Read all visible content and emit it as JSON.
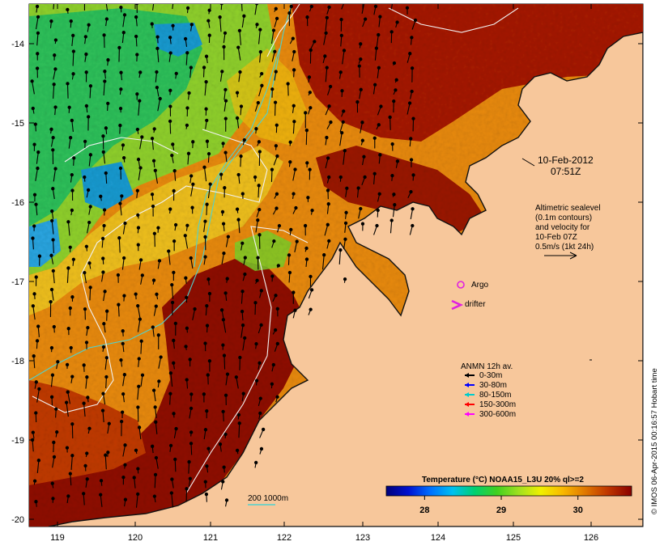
{
  "colors": {
    "land": "#f7c79b",
    "coast": "#111111",
    "contour": "#f2f2f2",
    "isobath": "#4fd2cf",
    "background": "#ffffff"
  },
  "map": {
    "lon_ticks": [
      "119",
      "120",
      "121",
      "122",
      "123",
      "124",
      "125",
      "126"
    ],
    "lat_ticks": [
      "-14",
      "-15",
      "-16",
      "-17",
      "-18",
      "-19",
      "-20"
    ],
    "timestamp": [
      "10-Feb-2012",
      "07:51Z"
    ],
    "altimetry_note": [
      "Altimetric sealevel",
      "(0.1m contours)",
      "and velocity for",
      "10-Feb 07Z",
      "0.5m/s (1kt 24h)"
    ],
    "argo_label": "Argo",
    "drifter_label": "drifter",
    "isobath_scale_label": "200  1000m",
    "credit": "© IMOS 06-Apr-2015 00:16:57 Hobart time"
  },
  "anmn_legend": {
    "title": "ANMN 12h av.",
    "items": [
      {
        "label": "0-30m",
        "color": "#000000"
      },
      {
        "label": "30-80m",
        "color": "#0000ff"
      },
      {
        "label": "80-150m",
        "color": "#00cccc"
      },
      {
        "label": "150-300m",
        "color": "#ff0000"
      },
      {
        "label": "300-600m",
        "color": "#ff00ff"
      }
    ]
  },
  "colorbar": {
    "title": "Temperature (°C) NOAA15_L3U 20% ql>=2",
    "ticks": [
      "28",
      "29",
      "30"
    ],
    "range": [
      27.5,
      30.7
    ],
    "tick_values": [
      28,
      29,
      30
    ],
    "stops": [
      "#00007a",
      "#0010d0",
      "#0070ff",
      "#00c0f0",
      "#00d070",
      "#40d020",
      "#a0e020",
      "#f0f000",
      "#f8b800",
      "#e07800",
      "#c03800",
      "#8a0000"
    ]
  }
}
